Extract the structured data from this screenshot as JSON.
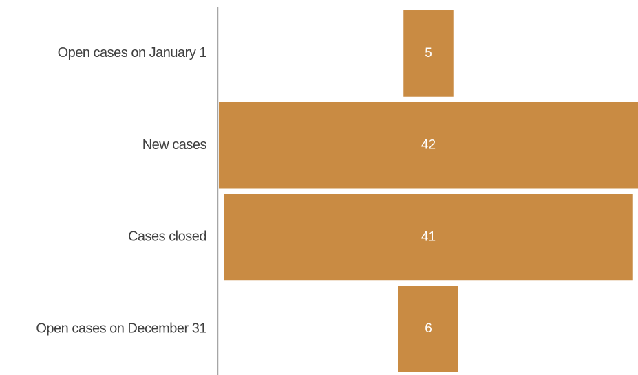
{
  "chart_data": {
    "type": "funnel",
    "categories": [
      "Open cases on January 1",
      "New cases",
      "Cases closed",
      "Open cases on December 31"
    ],
    "values": [
      5,
      42,
      41,
      6
    ],
    "color": "#c98b43"
  }
}
